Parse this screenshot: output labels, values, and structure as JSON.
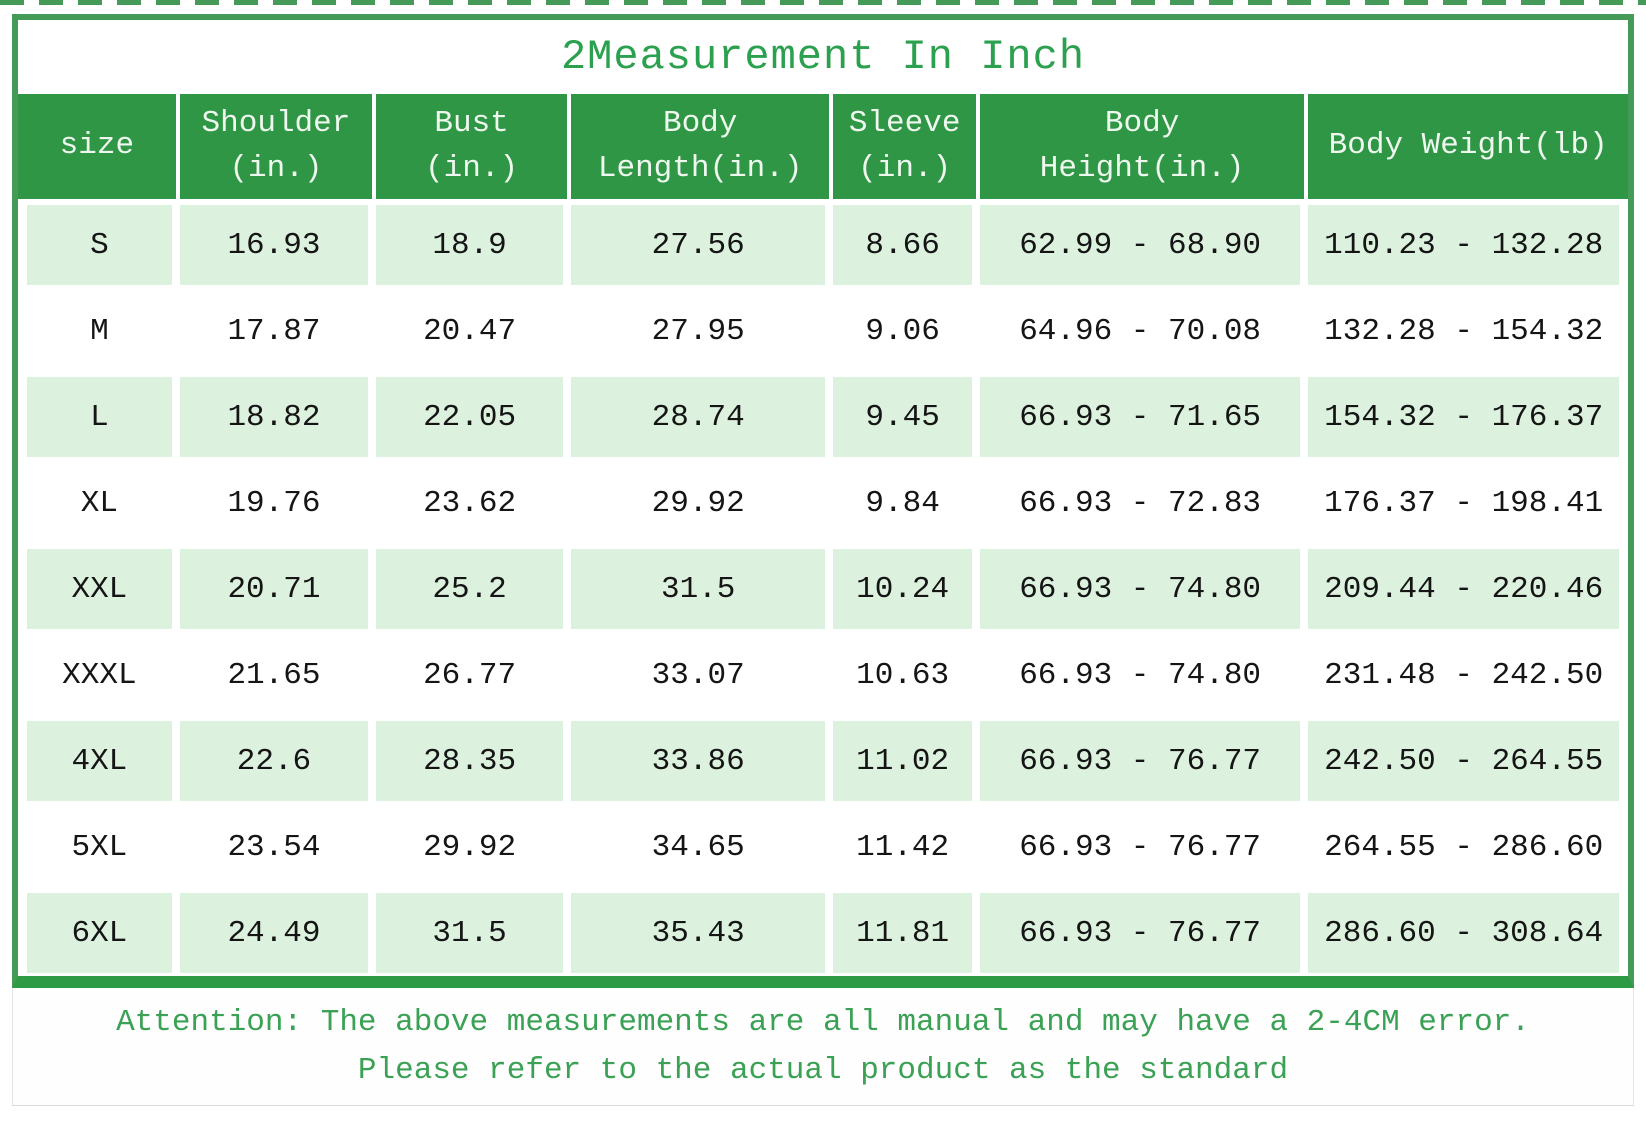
{
  "title": "2Measurement In Inch",
  "table": {
    "columns": [
      {
        "id": "size",
        "label": "size"
      },
      {
        "id": "shoulder_in",
        "label": "Shoulder\n(in.)"
      },
      {
        "id": "bust_in",
        "label": "Bust\n(in.)"
      },
      {
        "id": "body_length_in",
        "label": "Body\nLength(in.)"
      },
      {
        "id": "sleeve_in",
        "label": "Sleeve\n(in.)"
      },
      {
        "id": "body_height_in",
        "label": "Body\nHeight(in.)"
      },
      {
        "id": "body_weight_lb",
        "label": "Body Weight(lb)"
      }
    ],
    "rows": [
      [
        "S",
        "16.93",
        "18.9",
        "27.56",
        "8.66",
        "62.99 - 68.90",
        "110.23 - 132.28"
      ],
      [
        "M",
        "17.87",
        "20.47",
        "27.95",
        "9.06",
        "64.96 - 70.08",
        "132.28 - 154.32"
      ],
      [
        "L",
        "18.82",
        "22.05",
        "28.74",
        "9.45",
        "66.93 - 71.65",
        "154.32 - 176.37"
      ],
      [
        "XL",
        "19.76",
        "23.62",
        "29.92",
        "9.84",
        "66.93 - 72.83",
        "176.37 - 198.41"
      ],
      [
        "XXL",
        "20.71",
        "25.2",
        "31.5",
        "10.24",
        "66.93 - 74.80",
        "209.44 - 220.46"
      ],
      [
        "XXXL",
        "21.65",
        "26.77",
        "33.07",
        "10.63",
        "66.93 - 74.80",
        "231.48 - 242.50"
      ],
      [
        "4XL",
        "22.6",
        "28.35",
        "33.86",
        "11.02",
        "66.93 - 76.77",
        "242.50 - 264.55"
      ],
      [
        "5XL",
        "23.54",
        "29.92",
        "34.65",
        "11.42",
        "66.93 - 76.77",
        "264.55 - 286.60"
      ],
      [
        "6XL",
        "24.49",
        "31.5",
        "35.43",
        "11.81",
        "66.93 - 76.77",
        "286.60 - 308.64"
      ]
    ]
  },
  "note": {
    "line1": "Attention: The above measurements are all manual and may have a 2-4CM error.",
    "line2": "Please refer to the actual product as the standard"
  },
  "colors": {
    "frame_green": "#449a56",
    "frame_bottom_green": "#2e9a43",
    "header_green": "#2e9644",
    "row_light_green": "#dcf2de",
    "title_green": "#2ba04e",
    "note_green": "#3aa155",
    "body_text": "#151515"
  }
}
